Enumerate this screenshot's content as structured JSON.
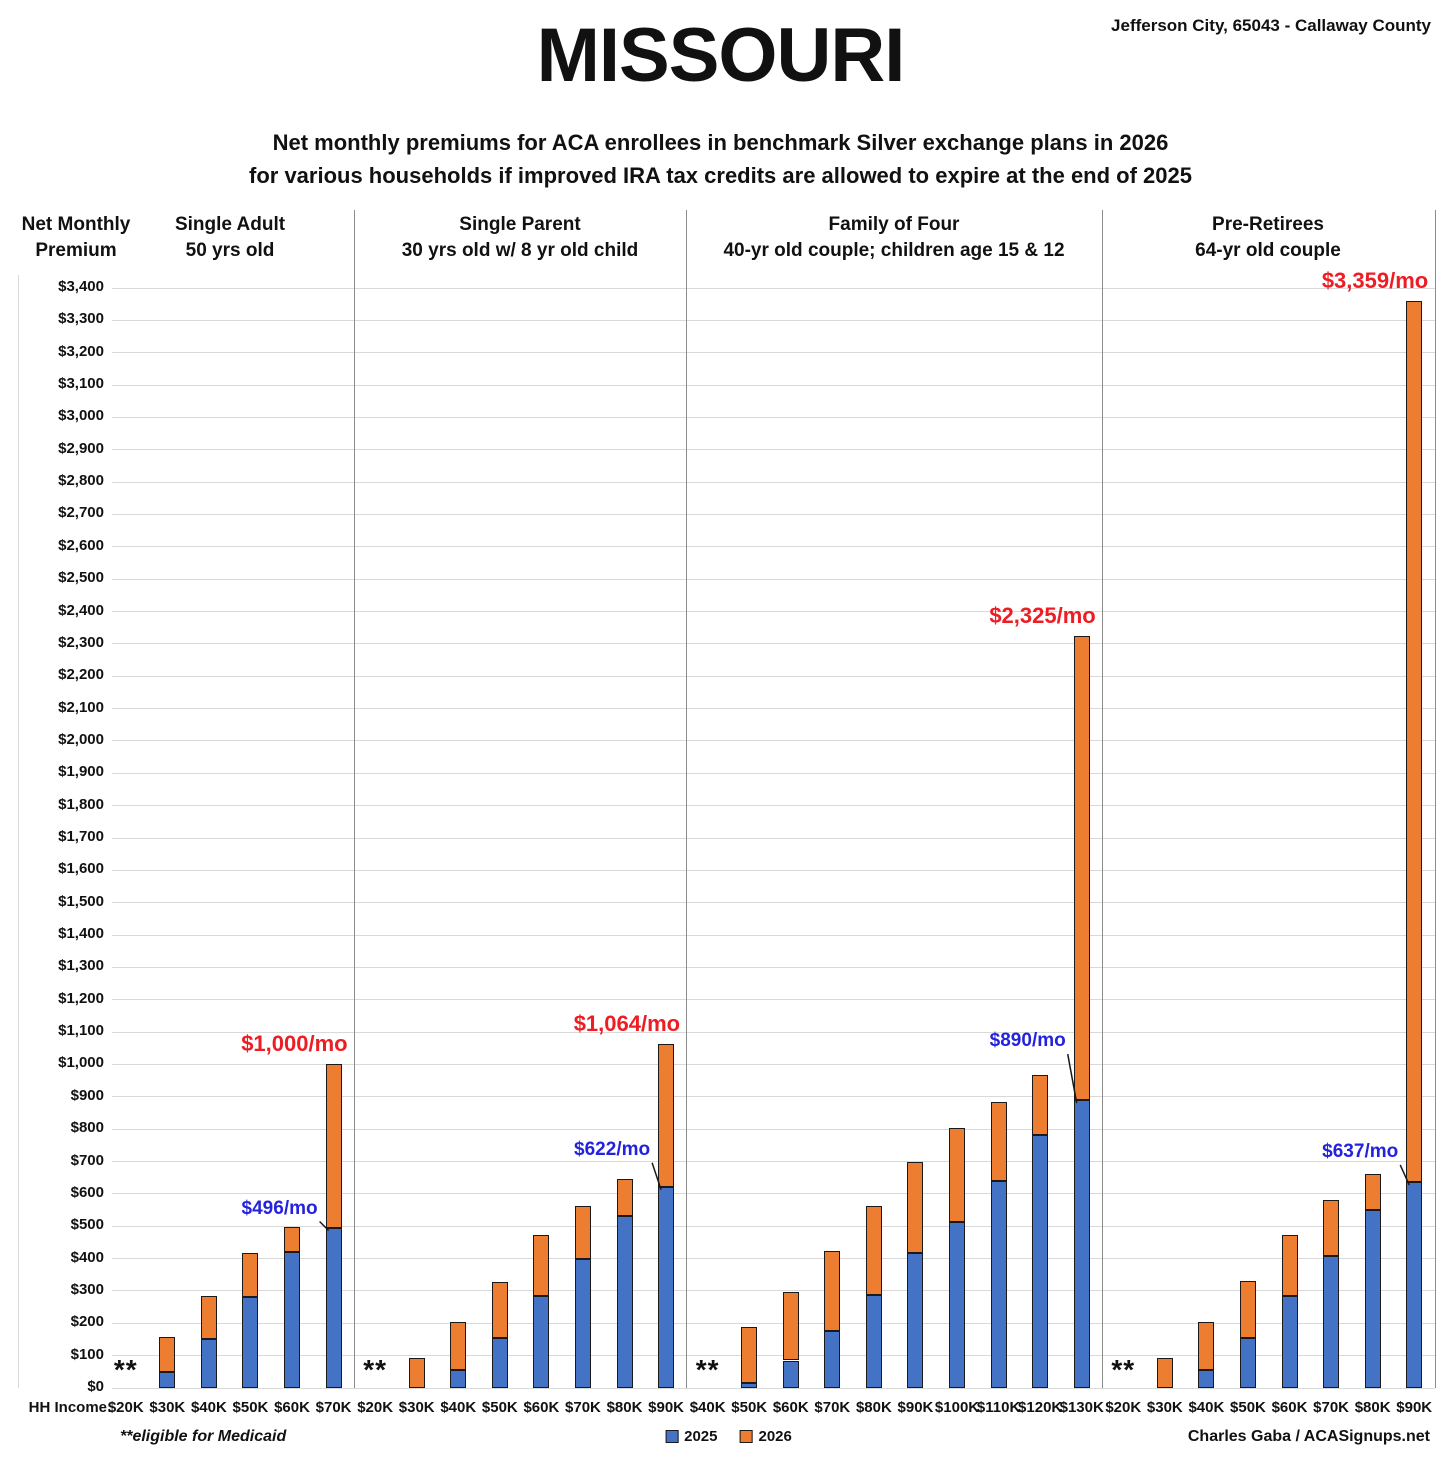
{
  "header": {
    "title": "MISSOURI",
    "location": "Jefferson City, 65043 - Callaway County",
    "subtitle_line1": "Net monthly premiums for ACA enrollees in benchmark Silver exchange plans in 2026",
    "subtitle_line2": "for various households if improved IRA tax credits are allowed to expire at the end of 2025"
  },
  "y_axis": {
    "label_line1": "Net Monthly",
    "label_line2": "Premium",
    "min": 0,
    "max": 3400,
    "step": 100,
    "tick_prefix": "$"
  },
  "x_axis": {
    "label": "HH Income:"
  },
  "medicaid_marker": "**",
  "legend": {
    "position": "bottom-center",
    "items": [
      {
        "label": "2025",
        "color": "#4472C4"
      },
      {
        "label": "2026",
        "color": "#ED7D31"
      }
    ]
  },
  "footer": {
    "medicaid_note": "**eligible for Medicaid",
    "credit": "Charles Gaba / ACASignups.net"
  },
  "colors": {
    "bar_2025": "#4472C4",
    "bar_2026": "#ED7D31",
    "bar_border": "#1a1a1a",
    "annotation_2025": "#2323dd",
    "annotation_total": "#ee1c23",
    "gridline": "#d9d9d9",
    "separator": "#8c8c8c"
  },
  "chart_data": {
    "type": "bar",
    "stacked": true,
    "grid": true,
    "ylim": [
      0,
      3400
    ],
    "ylabel": "Net Monthly Premium",
    "series_names": [
      "2025",
      "2026"
    ],
    "note": "values are net monthly premium in dollars; total_2026 is full stacked bar height; 2026 segment = total_2026 - v2025; medicaid bars have no data",
    "groups": [
      {
        "title": "Single Adult",
        "subtitle": "50 yrs old",
        "bars": [
          {
            "income": "$20K",
            "medicaid": true
          },
          {
            "income": "$30K",
            "v2025": 49,
            "total_2026": 157
          },
          {
            "income": "$40K",
            "v2025": 152,
            "total_2026": 285
          },
          {
            "income": "$50K",
            "v2025": 280,
            "total_2026": 417
          },
          {
            "income": "$60K",
            "v2025": 421,
            "total_2026": 497
          },
          {
            "income": "$70K",
            "v2025": 496,
            "total_2026": 1000,
            "ann_2025": "$496/mo",
            "ann_total": "$1,000/mo",
            "ann_2025_rise": 8
          }
        ]
      },
      {
        "title": "Single Parent",
        "subtitle": "30 yrs old w/ 8 yr old child",
        "bars": [
          {
            "income": "$20K",
            "medicaid": true
          },
          {
            "income": "$30K",
            "v2025": 0,
            "total_2026": 92
          },
          {
            "income": "$40K",
            "v2025": 57,
            "total_2026": 203
          },
          {
            "income": "$50K",
            "v2025": 155,
            "total_2026": 328
          },
          {
            "income": "$60K",
            "v2025": 285,
            "total_2026": 473
          },
          {
            "income": "$70K",
            "v2025": 398,
            "total_2026": 563
          },
          {
            "income": "$80K",
            "v2025": 533,
            "total_2026": 645
          },
          {
            "income": "$90K",
            "v2025": 622,
            "total_2026": 1064,
            "ann_2025": "$622/mo",
            "ann_total": "$1,064/mo",
            "ann_2025_rise": 26
          }
        ]
      },
      {
        "title": "Family of Four",
        "subtitle": "40-yr old couple; children age 15 & 12",
        "bars": [
          {
            "income": "$40K",
            "medicaid": true
          },
          {
            "income": "$50K",
            "v2025": 15,
            "total_2026": 188
          },
          {
            "income": "$60K",
            "v2025": 85,
            "total_2026": 296
          },
          {
            "income": "$70K",
            "v2025": 175,
            "total_2026": 422
          },
          {
            "income": "$80K",
            "v2025": 286,
            "total_2026": 562
          },
          {
            "income": "$90K",
            "v2025": 416,
            "total_2026": 700
          },
          {
            "income": "$100K",
            "v2025": 514,
            "total_2026": 803
          },
          {
            "income": "$110K",
            "v2025": 639,
            "total_2026": 885
          },
          {
            "income": "$120K",
            "v2025": 781,
            "total_2026": 968
          },
          {
            "income": "$130K",
            "v2025": 890,
            "total_2026": 2325,
            "ann_2025": "$890/mo",
            "ann_total": "$2,325/mo",
            "ann_2025_rise": 48
          }
        ]
      },
      {
        "title": "Pre-Retirees",
        "subtitle": "64-yr old couple",
        "bars": [
          {
            "income": "$20K",
            "medicaid": true
          },
          {
            "income": "$30K",
            "v2025": 0,
            "total_2026": 92
          },
          {
            "income": "$40K",
            "v2025": 57,
            "total_2026": 203
          },
          {
            "income": "$50K",
            "v2025": 156,
            "total_2026": 331
          },
          {
            "income": "$60K",
            "v2025": 285,
            "total_2026": 473
          },
          {
            "income": "$70K",
            "v2025": 408,
            "total_2026": 581
          },
          {
            "income": "$80K",
            "v2025": 551,
            "total_2026": 662
          },
          {
            "income": "$90K",
            "v2025": 637,
            "total_2026": 3359,
            "ann_2025": "$637/mo",
            "ann_total": "$3,359/mo",
            "ann_2025_rise": 19
          }
        ]
      }
    ]
  }
}
